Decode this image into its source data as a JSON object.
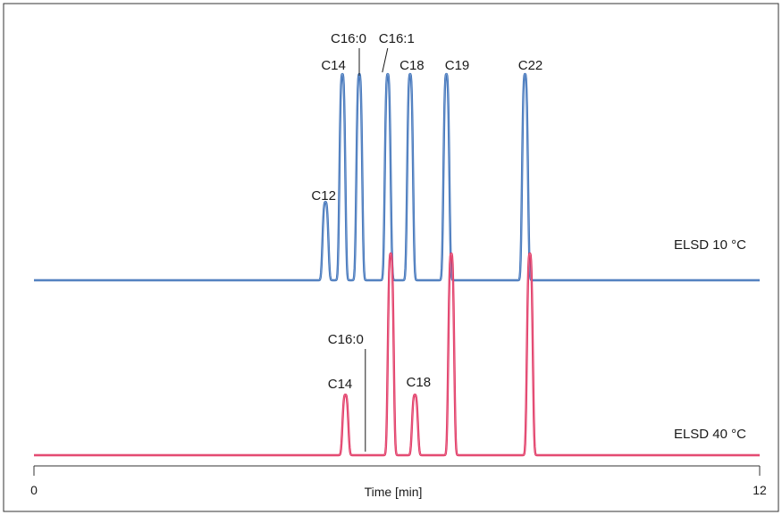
{
  "chart_data": {
    "type": "line",
    "title": "",
    "xlabel": "Time [min]",
    "ylabel": "",
    "xlim": [
      0,
      12
    ],
    "xticks": [
      0,
      12
    ],
    "grid": false,
    "legend": "none",
    "series": [
      {
        "name": "ELSD 10 °C",
        "color": "#3a6fb8",
        "peaks": [
          {
            "label": "C12",
            "time": 4.82,
            "height": 0.38
          },
          {
            "label": "C14",
            "time": 5.1,
            "height": 1.0
          },
          {
            "label": "C16:0",
            "time": 5.38,
            "height": 1.0
          },
          {
            "label": "C16:1",
            "time": 5.85,
            "height": 1.0
          },
          {
            "label": "C18",
            "time": 6.22,
            "height": 1.0
          },
          {
            "label": "C19",
            "time": 6.82,
            "height": 1.0
          },
          {
            "label": "C22",
            "time": 8.12,
            "height": 1.0
          }
        ]
      },
      {
        "name": "ELSD 40 °C",
        "color": "#e0305e",
        "peaks": [
          {
            "label": "C14",
            "time": 5.15,
            "height": 0.3
          },
          {
            "label": "C16:0",
            "time": 5.48,
            "height": 0.0
          },
          {
            "label": "",
            "time": 5.9,
            "height": 1.0
          },
          {
            "label": "C18",
            "time": 6.3,
            "height": 0.3
          },
          {
            "label": "",
            "time": 6.9,
            "height": 1.0
          },
          {
            "label": "",
            "time": 8.2,
            "height": 1.0
          }
        ]
      }
    ]
  }
}
